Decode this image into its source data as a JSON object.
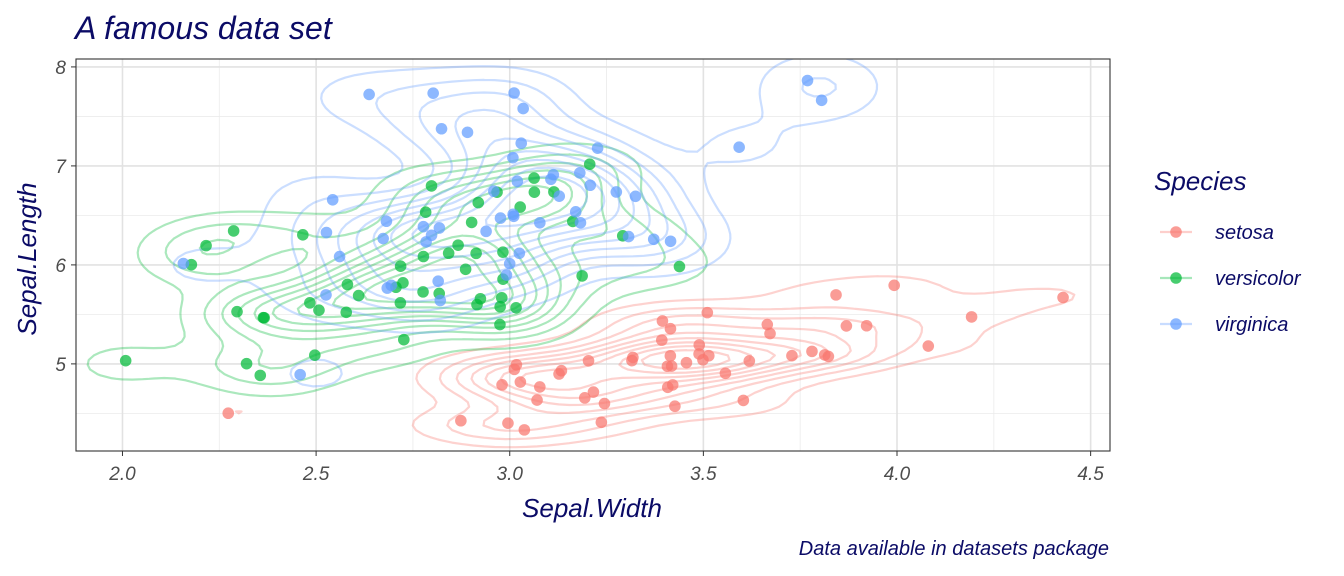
{
  "chart_data": {
    "type": "scatter",
    "title": "A famous data set",
    "xlabel": "Sepal.Width",
    "ylabel": "Sepal.Length",
    "caption": "Data available in datasets package",
    "xlim": [
      1.88,
      4.55
    ],
    "ylim": [
      4.12,
      8.08
    ],
    "x_ticks": [
      "2.0",
      "2.5",
      "3.0",
      "3.5",
      "4.0",
      "4.5"
    ],
    "y_ticks": [
      "5",
      "6",
      "7",
      "8"
    ],
    "x_tick_values": [
      2.0,
      2.5,
      3.0,
      3.5,
      4.0,
      4.5
    ],
    "y_tick_values": [
      5,
      6,
      7,
      8
    ],
    "grid": true,
    "density_contours": true,
    "legend": {
      "title": "Species",
      "position": "right"
    },
    "series": [
      {
        "name": "setosa",
        "color": "#F8766D",
        "points": [
          [
            3.5,
            5.1
          ],
          [
            3.0,
            4.9
          ],
          [
            3.2,
            4.7
          ],
          [
            3.1,
            4.6
          ],
          [
            3.6,
            5.0
          ],
          [
            3.9,
            5.4
          ],
          [
            3.4,
            4.6
          ],
          [
            3.4,
            5.0
          ],
          [
            2.9,
            4.4
          ],
          [
            3.1,
            4.9
          ],
          [
            3.7,
            5.4
          ],
          [
            3.4,
            4.8
          ],
          [
            3.0,
            4.8
          ],
          [
            3.0,
            4.3
          ],
          [
            4.0,
            5.8
          ],
          [
            4.4,
            5.7
          ],
          [
            3.9,
            5.4
          ],
          [
            3.5,
            5.1
          ],
          [
            3.8,
            5.7
          ],
          [
            3.8,
            5.1
          ],
          [
            3.4,
            5.4
          ],
          [
            3.7,
            5.1
          ],
          [
            3.6,
            4.6
          ],
          [
            3.3,
            5.1
          ],
          [
            3.4,
            4.8
          ],
          [
            3.0,
            5.0
          ],
          [
            3.4,
            5.0
          ],
          [
            3.5,
            5.2
          ],
          [
            3.4,
            5.2
          ],
          [
            3.2,
            4.7
          ],
          [
            3.1,
            4.8
          ],
          [
            3.4,
            5.4
          ],
          [
            4.1,
            5.2
          ],
          [
            4.2,
            5.5
          ],
          [
            3.1,
            4.9
          ],
          [
            3.2,
            5.0
          ],
          [
            3.5,
            5.5
          ],
          [
            3.6,
            4.9
          ],
          [
            3.0,
            4.4
          ],
          [
            3.4,
            5.1
          ],
          [
            3.5,
            5.0
          ],
          [
            2.3,
            4.5
          ],
          [
            3.2,
            4.4
          ],
          [
            3.5,
            5.0
          ],
          [
            3.8,
            5.1
          ],
          [
            3.0,
            4.8
          ],
          [
            3.8,
            5.1
          ],
          [
            3.2,
            4.6
          ],
          [
            3.7,
            5.3
          ],
          [
            3.3,
            5.0
          ]
        ]
      },
      {
        "name": "versicolor",
        "color": "#00BA38",
        "points": [
          [
            3.2,
            7.0
          ],
          [
            3.2,
            6.4
          ],
          [
            3.1,
            6.9
          ],
          [
            2.3,
            5.5
          ],
          [
            2.8,
            6.5
          ],
          [
            2.8,
            5.7
          ],
          [
            3.3,
            6.3
          ],
          [
            2.4,
            4.9
          ],
          [
            2.9,
            6.6
          ],
          [
            2.7,
            5.2
          ],
          [
            2.0,
            5.0
          ],
          [
            3.0,
            5.9
          ],
          [
            2.2,
            6.0
          ],
          [
            2.9,
            6.1
          ],
          [
            2.9,
            5.6
          ],
          [
            3.1,
            6.7
          ],
          [
            3.0,
            5.6
          ],
          [
            2.7,
            5.8
          ],
          [
            2.2,
            6.2
          ],
          [
            2.5,
            5.6
          ],
          [
            3.2,
            5.9
          ],
          [
            2.8,
            6.1
          ],
          [
            2.5,
            6.3
          ],
          [
            2.8,
            6.1
          ],
          [
            2.9,
            6.4
          ],
          [
            3.0,
            6.6
          ],
          [
            2.8,
            6.8
          ],
          [
            3.0,
            6.7
          ],
          [
            2.9,
            6.0
          ],
          [
            2.6,
            5.7
          ],
          [
            2.4,
            5.5
          ],
          [
            2.4,
            5.5
          ],
          [
            2.7,
            5.8
          ],
          [
            2.7,
            6.0
          ],
          [
            3.0,
            5.4
          ],
          [
            3.4,
            6.0
          ],
          [
            3.1,
            6.7
          ],
          [
            2.3,
            6.3
          ],
          [
            3.0,
            5.6
          ],
          [
            2.5,
            5.5
          ],
          [
            2.6,
            5.5
          ],
          [
            3.0,
            6.1
          ],
          [
            2.6,
            5.8
          ],
          [
            2.3,
            5.0
          ],
          [
            2.7,
            5.6
          ],
          [
            3.0,
            5.7
          ],
          [
            2.9,
            5.7
          ],
          [
            2.9,
            6.2
          ],
          [
            2.5,
            5.1
          ],
          [
            2.8,
            5.7
          ]
        ]
      },
      {
        "name": "virginica",
        "color": "#619CFF",
        "points": [
          [
            3.3,
            6.3
          ],
          [
            2.7,
            5.8
          ],
          [
            3.0,
            7.1
          ],
          [
            2.9,
            6.3
          ],
          [
            3.0,
            6.5
          ],
          [
            3.0,
            7.6
          ],
          [
            2.5,
            4.9
          ],
          [
            2.9,
            7.3
          ],
          [
            2.5,
            6.7
          ],
          [
            3.6,
            7.2
          ],
          [
            3.2,
            6.5
          ],
          [
            2.7,
            6.4
          ],
          [
            3.0,
            6.8
          ],
          [
            2.5,
            5.7
          ],
          [
            2.8,
            5.8
          ],
          [
            3.2,
            6.4
          ],
          [
            3.0,
            6.5
          ],
          [
            3.8,
            7.7
          ],
          [
            2.6,
            7.7
          ],
          [
            2.2,
            6.0
          ],
          [
            3.2,
            6.9
          ],
          [
            2.8,
            5.6
          ],
          [
            2.8,
            7.7
          ],
          [
            2.7,
            6.3
          ],
          [
            3.3,
            6.7
          ],
          [
            3.2,
            7.2
          ],
          [
            2.8,
            6.2
          ],
          [
            3.0,
            6.1
          ],
          [
            2.8,
            6.4
          ],
          [
            3.0,
            7.2
          ],
          [
            2.8,
            7.4
          ],
          [
            3.8,
            7.9
          ],
          [
            2.8,
            6.4
          ],
          [
            2.8,
            6.3
          ],
          [
            2.6,
            6.1
          ],
          [
            3.0,
            7.7
          ],
          [
            3.4,
            6.3
          ],
          [
            3.1,
            6.4
          ],
          [
            3.0,
            6.0
          ],
          [
            3.1,
            6.9
          ],
          [
            3.1,
            6.7
          ],
          [
            3.1,
            6.9
          ],
          [
            2.7,
            5.8
          ],
          [
            3.2,
            6.8
          ],
          [
            3.3,
            6.7
          ],
          [
            3.0,
            6.7
          ],
          [
            2.5,
            6.3
          ],
          [
            3.0,
            6.5
          ],
          [
            3.4,
            6.2
          ],
          [
            3.0,
            5.9
          ]
        ]
      }
    ]
  }
}
